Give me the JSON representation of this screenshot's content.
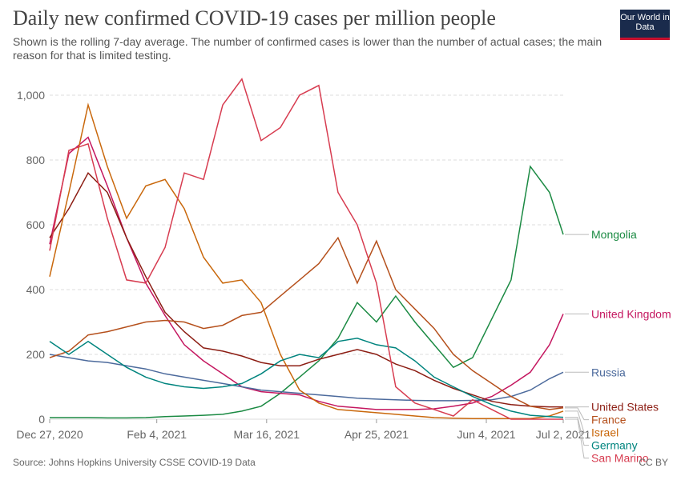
{
  "chart_data": {
    "type": "line",
    "title": "Daily new confirmed COVID-19 cases per million people",
    "subtitle": "Shown is the rolling 7-day average. The number of confirmed cases is lower than the number of actual cases; the main reason for that is limited testing.",
    "logo": "Our World in Data",
    "source": "Source: Johns Hopkins University CSSE COVID-19 Data",
    "license": "CC BY",
    "x": [
      "2020-12-27",
      "2021-01-03",
      "2021-01-10",
      "2021-01-17",
      "2021-01-24",
      "2021-01-31",
      "2021-02-07",
      "2021-02-14",
      "2021-02-21",
      "2021-02-28",
      "2021-03-07",
      "2021-03-14",
      "2021-03-21",
      "2021-03-28",
      "2021-04-04",
      "2021-04-11",
      "2021-04-18",
      "2021-04-25",
      "2021-05-02",
      "2021-05-09",
      "2021-05-16",
      "2021-05-23",
      "2021-05-30",
      "2021-06-06",
      "2021-06-13",
      "2021-06-20",
      "2021-06-27",
      "2021-07-02"
    ],
    "xlim": [
      "2020-12-27",
      "2021-07-02"
    ],
    "xticks": [
      {
        "value": "2020-12-27",
        "label": "Dec 27, 2020"
      },
      {
        "value": "2021-02-04",
        "label": "Feb 4, 2021"
      },
      {
        "value": "2021-03-16",
        "label": "Mar 16, 2021"
      },
      {
        "value": "2021-04-25",
        "label": "Apr 25, 2021"
      },
      {
        "value": "2021-06-04",
        "label": "Jun 4, 2021"
      },
      {
        "value": "2021-07-02",
        "label": "Jul 2, 2021"
      }
    ],
    "ylim": [
      0,
      1000
    ],
    "yticks": [
      0,
      200,
      400,
      600,
      800,
      {
        "value": 1000,
        "label": "1,000"
      }
    ],
    "grid": true,
    "series": [
      {
        "name": "Mongolia",
        "color": "#1b8a43",
        "values": [
          5,
          5,
          5,
          4,
          4,
          5,
          8,
          10,
          12,
          15,
          25,
          40,
          80,
          130,
          180,
          250,
          360,
          300,
          380,
          300,
          230,
          160,
          190,
          310,
          430,
          780,
          700,
          570
        ]
      },
      {
        "name": "United Kingdom",
        "color": "#c4165f",
        "values": [
          540,
          820,
          870,
          720,
          560,
          420,
          320,
          230,
          180,
          140,
          100,
          85,
          80,
          75,
          55,
          40,
          35,
          30,
          30,
          30,
          32,
          40,
          50,
          70,
          105,
          145,
          230,
          325
        ]
      },
      {
        "name": "Russia",
        "color": "#4c6a9c",
        "values": [
          200,
          190,
          180,
          175,
          165,
          155,
          140,
          130,
          120,
          110,
          100,
          90,
          85,
          80,
          75,
          70,
          65,
          62,
          60,
          58,
          57,
          57,
          58,
          60,
          70,
          90,
          125,
          145
        ]
      },
      {
        "name": "United States",
        "color": "#8c1d13",
        "values": [
          560,
          650,
          760,
          700,
          560,
          440,
          330,
          270,
          220,
          210,
          195,
          175,
          165,
          165,
          185,
          200,
          215,
          200,
          170,
          150,
          120,
          95,
          75,
          55,
          45,
          40,
          38,
          38
        ]
      },
      {
        "name": "France",
        "color": "#b5501c",
        "values": [
          190,
          210,
          260,
          270,
          285,
          300,
          305,
          300,
          280,
          290,
          320,
          330,
          380,
          430,
          480,
          560,
          420,
          550,
          400,
          340,
          280,
          200,
          150,
          110,
          70,
          40,
          30,
          35
        ]
      },
      {
        "name": "Israel",
        "color": "#c9680c",
        "values": [
          440,
          700,
          970,
          780,
          620,
          720,
          740,
          650,
          500,
          420,
          430,
          360,
          200,
          90,
          50,
          30,
          25,
          20,
          15,
          10,
          5,
          3,
          2,
          2,
          2,
          2,
          10,
          25
        ]
      },
      {
        "name": "Germany",
        "color": "#00847e",
        "values": [
          240,
          200,
          240,
          200,
          160,
          130,
          110,
          100,
          95,
          100,
          110,
          140,
          180,
          200,
          190,
          240,
          250,
          230,
          220,
          180,
          130,
          100,
          70,
          45,
          25,
          12,
          8,
          6
        ]
      },
      {
        "name": "San Marino",
        "color": "#d73c50",
        "values": [
          520,
          830,
          850,
          620,
          430,
          420,
          530,
          760,
          740,
          970,
          1050,
          860,
          900,
          1000,
          1030,
          700,
          600,
          420,
          100,
          50,
          30,
          10,
          60,
          30,
          0,
          0,
          0,
          0
        ]
      }
    ]
  }
}
